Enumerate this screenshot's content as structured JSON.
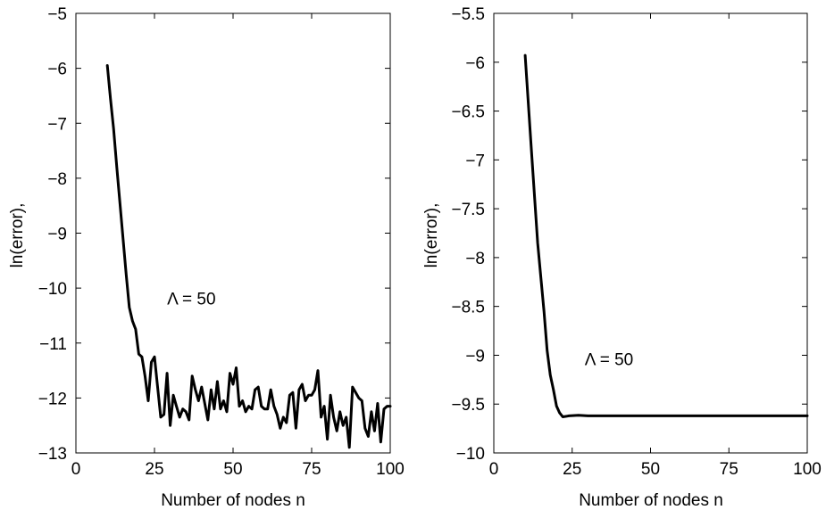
{
  "chart_data": [
    {
      "type": "line",
      "xlabel": "Number of nodes n",
      "ylabel": "ln(error),",
      "xlim": [
        0,
        100
      ],
      "ylim": [
        -13,
        -5
      ],
      "xticks": [
        0,
        25,
        50,
        75,
        100
      ],
      "yticks": [
        -13,
        -12,
        -11,
        -10,
        -9,
        -8,
        -7,
        -6,
        -5
      ],
      "annotation": {
        "text": "Λ = 50",
        "x": 29,
        "y": -10.3
      },
      "grid": false,
      "series": [
        {
          "x": [
            10,
            11,
            12,
            13,
            14,
            15,
            16,
            17,
            18,
            19,
            20,
            21,
            22,
            23,
            24,
            25,
            26,
            27,
            28,
            29,
            30,
            31,
            32,
            33,
            34,
            35,
            36,
            37,
            38,
            39,
            40,
            41,
            42,
            43,
            44,
            45,
            46,
            47,
            48,
            49,
            50,
            51,
            52,
            53,
            54,
            55,
            56,
            57,
            58,
            59,
            60,
            61,
            62,
            63,
            64,
            65,
            66,
            67,
            68,
            69,
            70,
            71,
            72,
            73,
            74,
            75,
            76,
            77,
            78,
            79,
            80,
            81,
            82,
            83,
            84,
            85,
            86,
            87,
            88,
            89,
            90,
            91,
            92,
            93,
            94,
            95,
            96,
            97,
            98,
            99,
            100
          ],
          "y": [
            -5.95,
            -6.55,
            -7.1,
            -7.8,
            -8.45,
            -9.1,
            -9.75,
            -10.35,
            -10.6,
            -10.75,
            -11.2,
            -11.25,
            -11.6,
            -12.05,
            -11.35,
            -11.25,
            -11.8,
            -12.35,
            -12.3,
            -11.55,
            -12.5,
            -11.95,
            -12.15,
            -12.35,
            -12.2,
            -12.25,
            -12.4,
            -11.6,
            -11.85,
            -12.05,
            -11.8,
            -12.1,
            -12.4,
            -11.85,
            -12.2,
            -11.7,
            -12.2,
            -12.05,
            -12.25,
            -11.55,
            -11.75,
            -11.45,
            -12.15,
            -12.05,
            -12.25,
            -12.15,
            -12.2,
            -11.85,
            -11.8,
            -12.15,
            -12.2,
            -12.2,
            -11.85,
            -12.15,
            -12.3,
            -12.55,
            -12.35,
            -12.45,
            -11.95,
            -11.9,
            -12.55,
            -11.85,
            -11.75,
            -12.05,
            -11.95,
            -11.95,
            -11.85,
            -11.5,
            -12.35,
            -12.15,
            -12.75,
            -11.95,
            -12.35,
            -12.6,
            -12.25,
            -12.5,
            -12.35,
            -12.9,
            -11.8,
            -11.9,
            -12.0,
            -12.05,
            -12.55,
            -12.7,
            -12.25,
            -12.6,
            -12.1,
            -12.8,
            -12.2,
            -12.15,
            -12.15
          ]
        }
      ]
    },
    {
      "type": "line",
      "xlabel": "Number of nodes n",
      "ylabel": "ln(error),",
      "xlim": [
        0,
        100
      ],
      "ylim": [
        -10,
        -5.5
      ],
      "xticks": [
        0,
        25,
        50,
        75,
        100
      ],
      "yticks": [
        -10,
        -9.5,
        -9,
        -8.5,
        -8,
        -7.5,
        -7,
        -6.5,
        -6,
        -5.5
      ],
      "annotation": {
        "text": "Λ = 50",
        "x": 29,
        "y": -9.1
      },
      "grid": false,
      "series": [
        {
          "x": [
            10,
            12,
            14,
            16,
            17,
            18,
            19,
            20,
            21,
            22,
            24,
            27,
            30,
            40,
            50,
            60,
            70,
            80,
            90,
            100
          ],
          "y": [
            -5.93,
            -6.9,
            -7.85,
            -8.55,
            -8.95,
            -9.2,
            -9.35,
            -9.52,
            -9.59,
            -9.63,
            -9.62,
            -9.615,
            -9.62,
            -9.62,
            -9.62,
            -9.62,
            -9.62,
            -9.62,
            -9.62,
            -9.62
          ]
        }
      ]
    }
  ]
}
